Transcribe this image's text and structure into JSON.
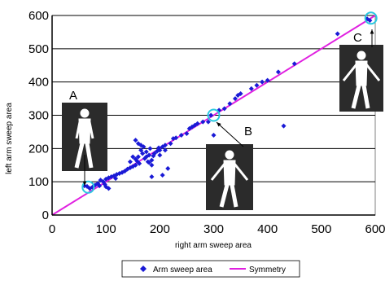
{
  "chart_data": {
    "type": "scatter",
    "title": "",
    "xlabel": "right arm sweep area",
    "ylabel": "left arm sweep area",
    "xlim": [
      0,
      600
    ],
    "ylim": [
      0,
      600
    ],
    "xticks": [
      "0",
      "100",
      "200",
      "300",
      "400",
      "500",
      "600"
    ],
    "yticks": [
      "0",
      "100",
      "200",
      "300",
      "400",
      "500",
      "600"
    ],
    "grid": "horizontal",
    "legend_position": "bottom",
    "series": [
      {
        "name": "Arm sweep area",
        "marker": "diamond",
        "color": "#1a1ad6",
        "points": [
          [
            60,
            88
          ],
          [
            65,
            86
          ],
          [
            70,
            80
          ],
          [
            75,
            84
          ],
          [
            80,
            90
          ],
          [
            85,
            95
          ],
          [
            88,
            88
          ],
          [
            90,
            105
          ],
          [
            95,
            100
          ],
          [
            98,
            92
          ],
          [
            100,
            85
          ],
          [
            105,
            80
          ],
          [
            100,
            108
          ],
          [
            105,
            112
          ],
          [
            110,
            115
          ],
          [
            115,
            118
          ],
          [
            118,
            110
          ],
          [
            120,
            122
          ],
          [
            125,
            125
          ],
          [
            130,
            128
          ],
          [
            135,
            132
          ],
          [
            140,
            138
          ],
          [
            145,
            142
          ],
          [
            150,
            146
          ],
          [
            155,
            150
          ],
          [
            158,
            162
          ],
          [
            160,
            175
          ],
          [
            162,
            155
          ],
          [
            165,
            195
          ],
          [
            168,
            185
          ],
          [
            170,
            205
          ],
          [
            172,
            170
          ],
          [
            175,
            190
          ],
          [
            178,
            160
          ],
          [
            180,
            180
          ],
          [
            182,
            200
          ],
          [
            185,
            165
          ],
          [
            188,
            178
          ],
          [
            190,
            185
          ],
          [
            195,
            192
          ],
          [
            198,
            202
          ],
          [
            155,
            168
          ],
          [
            150,
            175
          ],
          [
            145,
            160
          ],
          [
            160,
            215
          ],
          [
            155,
            225
          ],
          [
            165,
            210
          ],
          [
            175,
            175
          ],
          [
            180,
            158
          ],
          [
            185,
            150
          ],
          [
            200,
            195
          ],
          [
            205,
            205
          ],
          [
            210,
            210
          ],
          [
            215,
            140
          ],
          [
            205,
            120
          ],
          [
            185,
            115
          ],
          [
            200,
            180
          ],
          [
            210,
            195
          ],
          [
            220,
            215
          ],
          [
            225,
            230
          ],
          [
            230,
            232
          ],
          [
            240,
            240
          ],
          [
            250,
            245
          ],
          [
            255,
            260
          ],
          [
            260,
            265
          ],
          [
            265,
            270
          ],
          [
            270,
            275
          ],
          [
            280,
            280
          ],
          [
            290,
            280
          ],
          [
            295,
            300
          ],
          [
            300,
            240
          ],
          [
            310,
            315
          ],
          [
            320,
            320
          ],
          [
            330,
            335
          ],
          [
            340,
            350
          ],
          [
            345,
            360
          ],
          [
            350,
            365
          ],
          [
            370,
            380
          ],
          [
            380,
            390
          ],
          [
            390,
            400
          ],
          [
            400,
            405
          ],
          [
            420,
            430
          ],
          [
            430,
            268
          ],
          [
            450,
            455
          ],
          [
            530,
            545
          ],
          [
            585,
            590
          ],
          [
            590,
            585
          ]
        ]
      },
      {
        "name": "Symmetry",
        "type": "line",
        "color": "#e020e0",
        "points": [
          [
            0,
            0
          ],
          [
            600,
            600
          ]
        ]
      }
    ],
    "annotations": [
      {
        "label": "A",
        "target": [
          67,
          84
        ]
      },
      {
        "label": "B",
        "target": [
          300,
          300
        ]
      },
      {
        "label": "C",
        "target": [
          592,
          592
        ]
      }
    ]
  }
}
